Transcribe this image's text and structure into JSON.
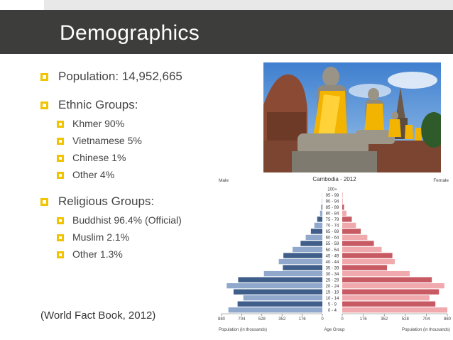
{
  "slide": {
    "title": "Demographics",
    "bullets": {
      "population": "Population: 14,952,665",
      "ethnic_heading": "Ethnic Groups:",
      "ethnic": [
        "Khmer 90%",
        "Vietnamese 5%",
        "Chinese 1%",
        "Other 4%"
      ],
      "religious_heading": "Religious Groups:",
      "religious": [
        "Buddhist 96.4% (Official)",
        "Muslim 2.1%",
        "Other 1.3%"
      ]
    },
    "source": "(World Fact Book, 2012)"
  },
  "colors": {
    "title_bar": "#3d3d3b",
    "bullet": "#f2c400",
    "male_dark": "#3f5f8a",
    "male_light": "#8fa8cc",
    "female_dark": "#c85a63",
    "female_light": "#f0a9ad"
  },
  "chart_data": {
    "type": "bar",
    "title": "Cambodia - 2012",
    "left_label": "Male",
    "right_label": "Female",
    "xlabel_left": "Population (in thousands)",
    "xlabel_center": "Age Group",
    "xlabel_right": "Population (in thousands)",
    "xticks": [
      "880",
      "704",
      "528",
      "352",
      "176",
      "0",
      "0",
      "176",
      "352",
      "528",
      "704",
      "880"
    ],
    "xlim": [
      0,
      880
    ],
    "categories": [
      "100+",
      "95 - 99",
      "90 - 94",
      "85 - 89",
      "80 - 84",
      "75 - 79",
      "70 - 74",
      "65 - 69",
      "60 - 64",
      "55 - 59",
      "50 - 54",
      "45 - 49",
      "40 - 44",
      "35 - 39",
      "30 - 34",
      "25 - 29",
      "20 - 24",
      "15 - 19",
      "10 - 14",
      "5 - 9",
      "0 - 4"
    ],
    "series": [
      {
        "name": "Male",
        "values": [
          0,
          1,
          3,
          8,
          20,
          45,
          70,
          100,
          145,
          190,
          260,
          340,
          380,
          345,
          510,
          735,
          835,
          775,
          690,
          740,
          820
        ]
      },
      {
        "name": "Female",
        "values": [
          0,
          2,
          5,
          15,
          35,
          80,
          115,
          155,
          210,
          265,
          330,
          420,
          440,
          375,
          565,
          750,
          855,
          810,
          730,
          780,
          880
        ]
      }
    ]
  }
}
